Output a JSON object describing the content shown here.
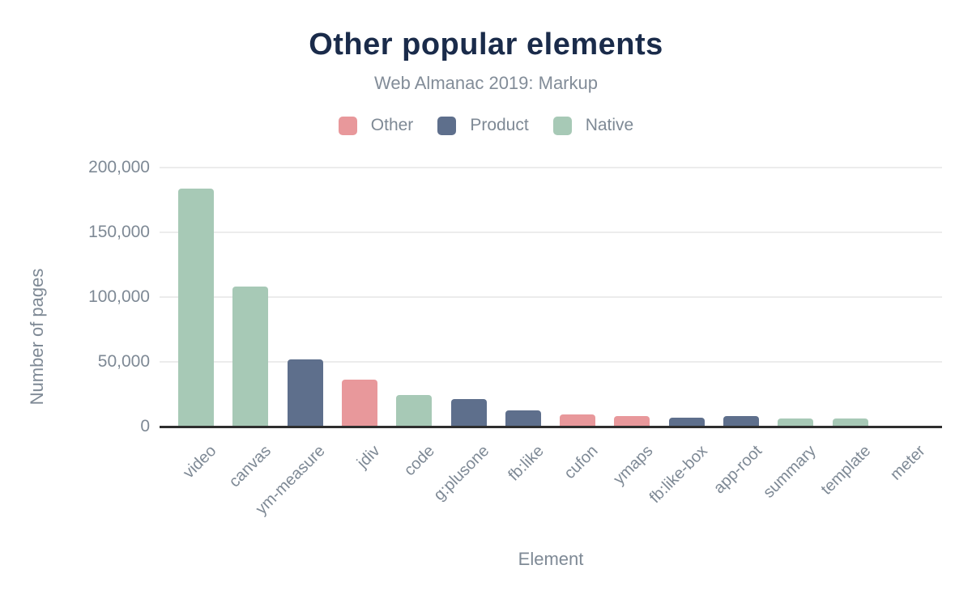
{
  "header": {
    "title": "Other popular elements",
    "subtitle": "Web Almanac 2019: Markup"
  },
  "legend": {
    "items": [
      {
        "label": "Other",
        "key": "other"
      },
      {
        "label": "Product",
        "key": "product"
      },
      {
        "label": "Native",
        "key": "native"
      }
    ]
  },
  "axes": {
    "y_title": "Number of pages",
    "x_title": "Element",
    "y_ticks": [
      {
        "value": 0,
        "label": "0"
      },
      {
        "value": 50000,
        "label": "50,000"
      },
      {
        "value": 100000,
        "label": "100,000"
      },
      {
        "value": 150000,
        "label": "150,000"
      },
      {
        "value": 200000,
        "label": "200,000"
      }
    ]
  },
  "colors": {
    "other": "#E8989B",
    "product": "#5E6F8C",
    "native": "#A7C9B6",
    "title": "#1A2B4A",
    "text_gray": "#7E8995",
    "axis_line": "#2E2E2E",
    "gridline": "#ECECEC",
    "background": "#FFFFFF"
  },
  "chart_data": {
    "type": "bar",
    "title": "Other popular elements",
    "subtitle": "Web Almanac 2019: Markup",
    "xlabel": "Element",
    "ylabel": "Number of pages",
    "ylim": [
      0,
      200000
    ],
    "yticks": [
      0,
      50000,
      100000,
      150000,
      200000
    ],
    "grid": true,
    "legend": [
      "Other",
      "Product",
      "Native"
    ],
    "legend_position": "top",
    "categories": [
      "video",
      "canvas",
      "ym-measure",
      "jdiv",
      "code",
      "g:plusone",
      "fb:like",
      "cufon",
      "ymaps",
      "fb:like-box",
      "app-root",
      "summary",
      "template",
      "meter"
    ],
    "points": [
      {
        "label": "video",
        "value": 184000,
        "group": "Native"
      },
      {
        "label": "canvas",
        "value": 108000,
        "group": "Native"
      },
      {
        "label": "ym-measure",
        "value": 52000,
        "group": "Product"
      },
      {
        "label": "jdiv",
        "value": 36500,
        "group": "Other"
      },
      {
        "label": "code",
        "value": 24500,
        "group": "Native"
      },
      {
        "label": "g:plusone",
        "value": 21000,
        "group": "Product"
      },
      {
        "label": "fb:like",
        "value": 12500,
        "group": "Product"
      },
      {
        "label": "cufon",
        "value": 9400,
        "group": "Other"
      },
      {
        "label": "ymaps",
        "value": 8300,
        "group": "Other"
      },
      {
        "label": "fb:like-box",
        "value": 7100,
        "group": "Product"
      },
      {
        "label": "app-root",
        "value": 7900,
        "group": "Product"
      },
      {
        "label": "summary",
        "value": 6000,
        "group": "Native"
      },
      {
        "label": "template",
        "value": 6200,
        "group": "Native"
      },
      {
        "label": "meter",
        "value": 400,
        "group": "Native"
      }
    ]
  }
}
